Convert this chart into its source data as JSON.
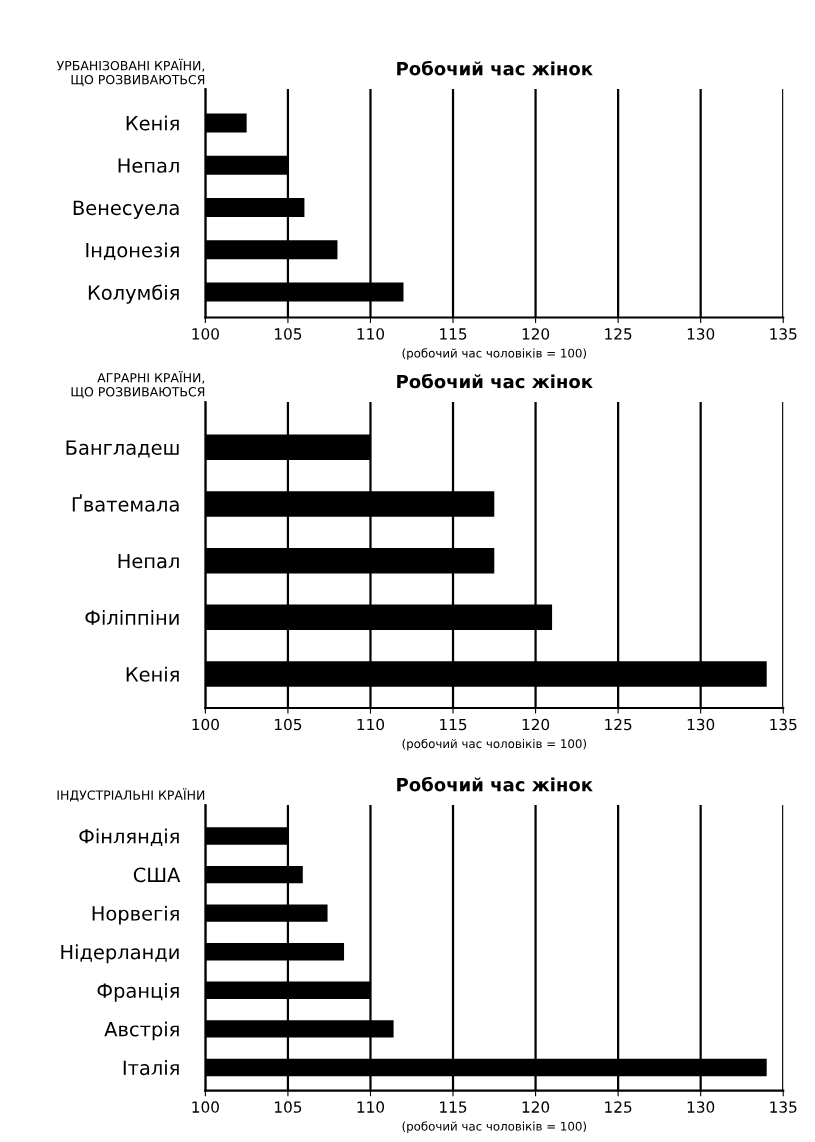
{
  "chart_data": [
    {
      "type": "bar",
      "orientation": "horizontal",
      "title": "Робочий час жінок",
      "ylabel": "УРБАНІЗОВАНІ КРАЇНИ,\nЩО РОЗВИВАЮТЬСЯ",
      "xlabel": "(робочий час чоловіків = 100)",
      "categories": [
        "Кенія",
        "Непал",
        "Венесуела",
        "Індонезія",
        "Колумбія"
      ],
      "values": [
        102.5,
        105,
        106,
        108,
        112
      ],
      "color": "#000000",
      "xlim": [
        100,
        135
      ],
      "xticks": [
        100,
        105,
        110,
        115,
        120,
        125,
        130,
        135
      ],
      "grid": "x"
    },
    {
      "type": "bar",
      "orientation": "horizontal",
      "title": "Робочий час жінок",
      "ylabel": "АГРАРНІ КРАЇНИ,\nЩО РОЗВИВАЮТЬСЯ",
      "xlabel": "(робочий час чоловіків = 100)",
      "categories": [
        "Бангладеш",
        "Ґватемала",
        "Непал",
        "Філіппіни",
        "Кенія"
      ],
      "values": [
        110,
        117.5,
        117.5,
        121,
        134
      ],
      "color": "#000000",
      "xlim": [
        100,
        135
      ],
      "xticks": [
        100,
        105,
        110,
        115,
        120,
        125,
        130,
        135
      ],
      "grid": "x"
    },
    {
      "type": "bar",
      "orientation": "horizontal",
      "title": "Робочий час жінок",
      "ylabel": "ІНДУСТРІАЛЬНІ КРАЇНИ",
      "xlabel": "(робочий час чоловіків = 100)",
      "categories": [
        "Фінляндія",
        "США",
        "Норвегія",
        "Нідерланди",
        "Франція",
        "Австрія",
        "Італія"
      ],
      "values": [
        105,
        105.9,
        107.4,
        108.4,
        110,
        111.4,
        134
      ],
      "color": "#000000",
      "xlim": [
        100,
        135
      ],
      "xticks": [
        100,
        105,
        110,
        115,
        120,
        125,
        130,
        135
      ],
      "grid": "x"
    }
  ]
}
